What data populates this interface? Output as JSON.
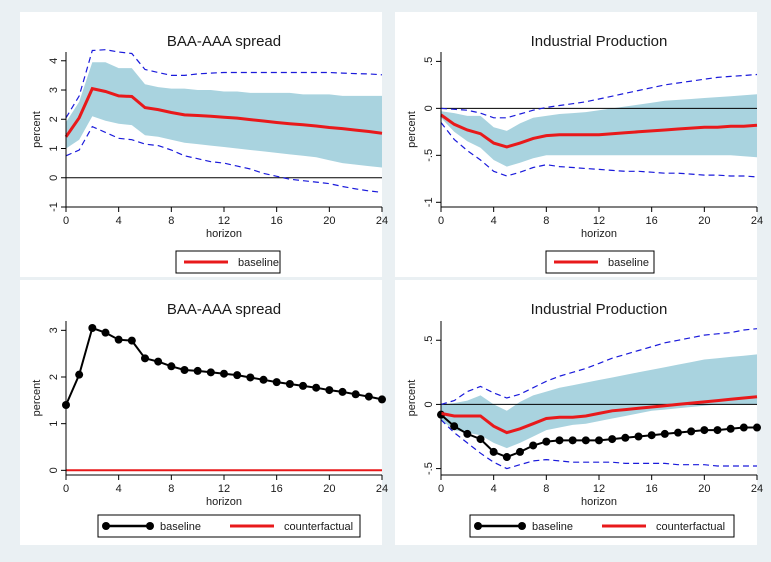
{
  "colors": {
    "background": "#eaf0f3",
    "panel": "#ffffff",
    "band": "#a9d3df",
    "baseline": "#e8191b",
    "counterfactual": "#e8191b",
    "ci_line": "#1a1adb",
    "zero_line": "#000000",
    "dots": "#000000"
  },
  "chart_data": [
    {
      "type": "line",
      "title": "BAA-AAA spread",
      "xlabel": "horizon",
      "ylabel": "percent",
      "xlim": [
        0,
        24
      ],
      "ylim": [
        -1,
        4.3
      ],
      "xticks": [
        0,
        4,
        8,
        12,
        16,
        20,
        24
      ],
      "xtick_labels": [
        "0",
        "4",
        "8",
        "12",
        "16",
        "20",
        "24"
      ],
      "yticks": [
        -1,
        0,
        1,
        2,
        3,
        4
      ],
      "ytick_labels": [
        "-1",
        "0",
        "1",
        "2",
        "3",
        "4"
      ],
      "x": [
        0,
        1,
        2,
        3,
        4,
        5,
        6,
        7,
        8,
        9,
        10,
        11,
        12,
        13,
        14,
        15,
        16,
        17,
        18,
        19,
        20,
        21,
        22,
        23,
        24
      ],
      "band": {
        "lower": [
          1.0,
          1.3,
          2.1,
          1.95,
          1.85,
          1.8,
          1.45,
          1.4,
          1.3,
          1.2,
          1.15,
          1.1,
          1.05,
          1.0,
          0.95,
          0.9,
          0.85,
          0.8,
          0.75,
          0.7,
          0.6,
          0.5,
          0.45,
          0.4,
          0.35
        ],
        "upper": [
          1.9,
          2.6,
          3.95,
          3.95,
          3.75,
          3.75,
          3.2,
          3.1,
          3.05,
          3.05,
          3.0,
          3.0,
          2.95,
          2.95,
          2.9,
          2.9,
          2.9,
          2.9,
          2.85,
          2.85,
          2.85,
          2.8,
          2.8,
          2.8,
          2.8
        ]
      },
      "ci_lower": [
        0.75,
        0.95,
        1.75,
        1.55,
        1.35,
        1.3,
        1.15,
        1.1,
        0.95,
        0.75,
        0.65,
        0.55,
        0.5,
        0.4,
        0.3,
        0.15,
        0.05,
        -0.05,
        -0.1,
        -0.15,
        -0.2,
        -0.3,
        -0.38,
        -0.45,
        -0.5
      ],
      "ci_upper": [
        2.05,
        2.8,
        4.35,
        4.38,
        4.3,
        4.25,
        3.7,
        3.6,
        3.5,
        3.5,
        3.55,
        3.58,
        3.6,
        3.6,
        3.6,
        3.6,
        3.6,
        3.6,
        3.6,
        3.6,
        3.6,
        3.58,
        3.56,
        3.55,
        3.52
      ],
      "series": [
        {
          "name": "baseline",
          "style": "thick-line",
          "values": [
            1.4,
            2.05,
            3.05,
            2.95,
            2.8,
            2.78,
            2.4,
            2.33,
            2.23,
            2.15,
            2.13,
            2.1,
            2.07,
            2.04,
            1.99,
            1.94,
            1.89,
            1.85,
            1.81,
            1.77,
            1.72,
            1.68,
            1.63,
            1.58,
            1.52
          ]
        }
      ],
      "zero_line": 0,
      "legend": [
        "baseline"
      ]
    },
    {
      "type": "line",
      "title": "Industrial Production",
      "xlabel": "horizon",
      "ylabel": "percent",
      "xlim": [
        0,
        24
      ],
      "ylim": [
        -1.05,
        0.6
      ],
      "xticks": [
        0,
        4,
        8,
        12,
        16,
        20,
        24
      ],
      "xtick_labels": [
        "0",
        "4",
        "8",
        "12",
        "16",
        "20",
        "24"
      ],
      "yticks": [
        -1,
        -0.5,
        0,
        0.5
      ],
      "ytick_labels": [
        "-1",
        "-.5",
        "0",
        ".5"
      ],
      "x": [
        0,
        1,
        2,
        3,
        4,
        5,
        6,
        7,
        8,
        9,
        10,
        11,
        12,
        13,
        14,
        15,
        16,
        17,
        18,
        19,
        20,
        21,
        22,
        23,
        24
      ],
      "band": {
        "lower": [
          -0.1,
          -0.25,
          -0.35,
          -0.42,
          -0.55,
          -0.62,
          -0.58,
          -0.53,
          -0.5,
          -0.5,
          -0.5,
          -0.5,
          -0.5,
          -0.5,
          -0.5,
          -0.5,
          -0.5,
          -0.5,
          -0.5,
          -0.5,
          -0.5,
          -0.5,
          -0.5,
          -0.51,
          -0.52
        ],
        "upper": [
          -0.03,
          -0.05,
          -0.08,
          -0.08,
          -0.2,
          -0.24,
          -0.16,
          -0.1,
          -0.08,
          -0.06,
          -0.05,
          -0.04,
          -0.02,
          0.0,
          0.02,
          0.04,
          0.06,
          0.08,
          0.09,
          0.1,
          0.11,
          0.12,
          0.13,
          0.14,
          0.15
        ]
      },
      "ci_lower": [
        -0.15,
        -0.33,
        -0.45,
        -0.55,
        -0.67,
        -0.72,
        -0.68,
        -0.63,
        -0.6,
        -0.62,
        -0.63,
        -0.64,
        -0.65,
        -0.66,
        -0.67,
        -0.67,
        -0.68,
        -0.69,
        -0.69,
        -0.7,
        -0.71,
        -0.71,
        -0.72,
        -0.72,
        -0.73
      ],
      "ci_upper": [
        0.0,
        -0.01,
        -0.02,
        -0.05,
        -0.1,
        -0.1,
        -0.06,
        -0.02,
        0.01,
        0.03,
        0.05,
        0.07,
        0.1,
        0.13,
        0.16,
        0.19,
        0.22,
        0.25,
        0.27,
        0.29,
        0.31,
        0.33,
        0.34,
        0.35,
        0.36
      ],
      "series": [
        {
          "name": "baseline",
          "style": "thick-line",
          "values": [
            -0.07,
            -0.17,
            -0.23,
            -0.27,
            -0.37,
            -0.41,
            -0.37,
            -0.32,
            -0.29,
            -0.28,
            -0.28,
            -0.28,
            -0.28,
            -0.27,
            -0.26,
            -0.25,
            -0.24,
            -0.23,
            -0.22,
            -0.21,
            -0.2,
            -0.2,
            -0.19,
            -0.19,
            -0.18
          ]
        }
      ],
      "zero_line": 0,
      "legend": [
        "baseline"
      ]
    },
    {
      "type": "line",
      "title": "BAA-AAA spread",
      "xlabel": "horizon",
      "ylabel": "percent",
      "xlim": [
        0,
        24
      ],
      "ylim": [
        -0.1,
        3.2
      ],
      "xticks": [
        0,
        4,
        8,
        12,
        16,
        20,
        24
      ],
      "xtick_labels": [
        "0",
        "4",
        "8",
        "12",
        "16",
        "20",
        "24"
      ],
      "yticks": [
        0,
        1,
        2,
        3
      ],
      "ytick_labels": [
        "0",
        "1",
        "2",
        "3"
      ],
      "x": [
        0,
        1,
        2,
        3,
        4,
        5,
        6,
        7,
        8,
        9,
        10,
        11,
        12,
        13,
        14,
        15,
        16,
        17,
        18,
        19,
        20,
        21,
        22,
        23,
        24
      ],
      "series": [
        {
          "name": "baseline",
          "style": "dots",
          "values": [
            1.4,
            2.05,
            3.05,
            2.95,
            2.8,
            2.78,
            2.4,
            2.33,
            2.23,
            2.15,
            2.13,
            2.1,
            2.07,
            2.04,
            1.99,
            1.94,
            1.89,
            1.85,
            1.81,
            1.77,
            1.72,
            1.68,
            1.63,
            1.58,
            1.52
          ]
        },
        {
          "name": "counterfactual",
          "style": "line",
          "values": [
            0,
            0,
            0,
            0,
            0,
            0,
            0,
            0,
            0,
            0,
            0,
            0,
            0,
            0,
            0,
            0,
            0,
            0,
            0,
            0,
            0,
            0,
            0,
            0,
            0
          ]
        }
      ],
      "zero_line": 0,
      "legend": [
        "baseline",
        "counterfactual"
      ]
    },
    {
      "type": "line",
      "title": "Industrial Production",
      "xlabel": "horizon",
      "ylabel": "percent",
      "xlim": [
        0,
        24
      ],
      "ylim": [
        -0.55,
        0.65
      ],
      "xticks": [
        0,
        4,
        8,
        12,
        16,
        20,
        24
      ],
      "xtick_labels": [
        "0",
        "4",
        "8",
        "12",
        "16",
        "20",
        "24"
      ],
      "yticks": [
        -0.5,
        0,
        0.5
      ],
      "ytick_labels": [
        "-.5",
        "0",
        ".5"
      ],
      "x": [
        0,
        1,
        2,
        3,
        4,
        5,
        6,
        7,
        8,
        9,
        10,
        11,
        12,
        13,
        14,
        15,
        16,
        17,
        18,
        19,
        20,
        21,
        22,
        23,
        24
      ],
      "band": {
        "lower": [
          -0.12,
          -0.2,
          -0.22,
          -0.24,
          -0.3,
          -0.34,
          -0.3,
          -0.25,
          -0.2,
          -0.18,
          -0.16,
          -0.15,
          -0.13,
          -0.11,
          -0.09,
          -0.07,
          -0.05,
          -0.04,
          -0.03,
          -0.02,
          -0.01,
          0.0,
          0.0,
          0.0,
          0.0
        ],
        "upper": [
          0.0,
          0.01,
          0.03,
          0.07,
          0.0,
          -0.05,
          0.02,
          0.07,
          0.1,
          0.13,
          0.15,
          0.17,
          0.19,
          0.21,
          0.23,
          0.25,
          0.27,
          0.29,
          0.31,
          0.33,
          0.35,
          0.36,
          0.37,
          0.38,
          0.39
        ]
      },
      "ci_lower": [
        -0.12,
        -0.22,
        -0.3,
        -0.38,
        -0.45,
        -0.5,
        -0.47,
        -0.44,
        -0.43,
        -0.44,
        -0.45,
        -0.45,
        -0.45,
        -0.45,
        -0.46,
        -0.46,
        -0.46,
        -0.46,
        -0.47,
        -0.47,
        -0.47,
        -0.48,
        -0.48,
        -0.48,
        -0.48
      ],
      "ci_upper": [
        0.0,
        0.03,
        0.1,
        0.14,
        0.09,
        0.05,
        0.08,
        0.13,
        0.18,
        0.22,
        0.25,
        0.28,
        0.32,
        0.36,
        0.39,
        0.42,
        0.45,
        0.48,
        0.5,
        0.52,
        0.54,
        0.55,
        0.56,
        0.58,
        0.59
      ],
      "series": [
        {
          "name": "baseline",
          "style": "dots",
          "values": [
            -0.08,
            -0.17,
            -0.23,
            -0.27,
            -0.37,
            -0.41,
            -0.37,
            -0.32,
            -0.29,
            -0.28,
            -0.28,
            -0.28,
            -0.28,
            -0.27,
            -0.26,
            -0.25,
            -0.24,
            -0.23,
            -0.22,
            -0.21,
            -0.2,
            -0.2,
            -0.19,
            -0.18,
            -0.18
          ]
        },
        {
          "name": "counterfactual",
          "style": "thick-line",
          "values": [
            -0.07,
            -0.09,
            -0.09,
            -0.09,
            -0.17,
            -0.22,
            -0.19,
            -0.15,
            -0.11,
            -0.1,
            -0.1,
            -0.09,
            -0.07,
            -0.05,
            -0.04,
            -0.03,
            -0.02,
            -0.01,
            0.0,
            0.01,
            0.02,
            0.03,
            0.04,
            0.05,
            0.06
          ]
        }
      ],
      "zero_line": 0,
      "legend": [
        "baseline",
        "counterfactual"
      ]
    }
  ]
}
